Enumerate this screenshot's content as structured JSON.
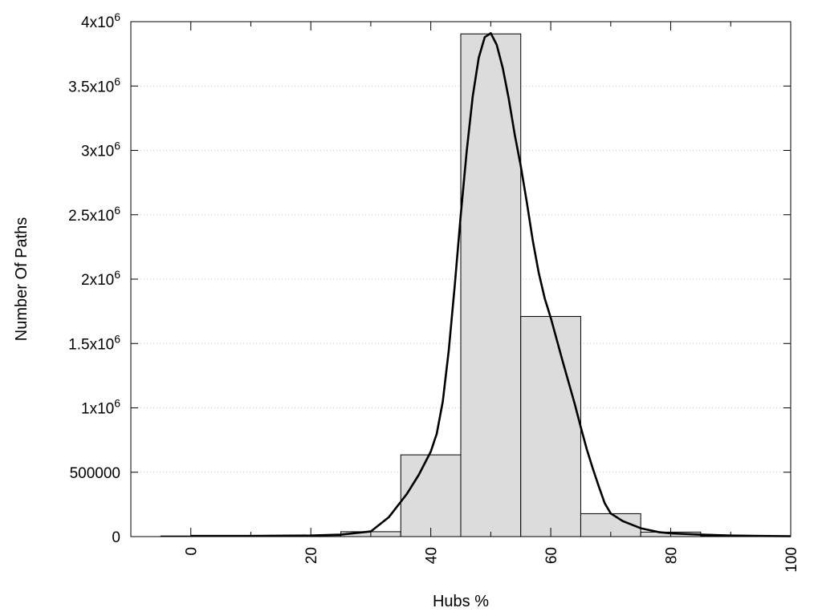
{
  "chart_data": {
    "type": "bar",
    "xlabel": "Hubs %",
    "ylabel": "Number Of Paths",
    "xlim": [
      -10,
      100
    ],
    "ylim": [
      0,
      4000000
    ],
    "grid": "horizontal-dotted",
    "x_ticks": [
      {
        "value": 0,
        "label": "0"
      },
      {
        "value": 20,
        "label": "20"
      },
      {
        "value": 40,
        "label": "40"
      },
      {
        "value": 60,
        "label": "60"
      },
      {
        "value": 80,
        "label": "80"
      },
      {
        "value": 100,
        "label": "100"
      }
    ],
    "y_ticks": [
      {
        "value": 0,
        "base": "0",
        "exp": ""
      },
      {
        "value": 500000,
        "base": "500000",
        "exp": ""
      },
      {
        "value": 1000000,
        "base": "1x10",
        "exp": "6"
      },
      {
        "value": 1500000,
        "base": "1.5x10",
        "exp": "6"
      },
      {
        "value": 2000000,
        "base": "2x10",
        "exp": "6"
      },
      {
        "value": 2500000,
        "base": "2.5x10",
        "exp": "6"
      },
      {
        "value": 3000000,
        "base": "3x10",
        "exp": "6"
      },
      {
        "value": 3500000,
        "base": "3.5x10",
        "exp": "6"
      },
      {
        "value": 4000000,
        "base": "4x10",
        "exp": "6"
      }
    ],
    "bin_width": 10,
    "bars": [
      {
        "x": 0,
        "value": 5000
      },
      {
        "x": 10,
        "value": 5000
      },
      {
        "x": 20,
        "value": 8000
      },
      {
        "x": 30,
        "value": 38000
      },
      {
        "x": 40,
        "value": 635000
      },
      {
        "x": 50,
        "value": 3905000
      },
      {
        "x": 60,
        "value": 1710000
      },
      {
        "x": 70,
        "value": 178000
      },
      {
        "x": 80,
        "value": 35000
      },
      {
        "x": 90,
        "value": 5000
      }
    ],
    "curve": {
      "x": [
        0,
        10,
        20,
        25,
        30,
        33,
        36,
        38,
        40,
        41,
        42,
        43,
        44,
        45,
        46,
        47,
        48,
        49,
        50,
        51,
        52,
        53,
        54,
        55,
        56,
        57,
        58,
        59,
        60,
        62,
        64,
        65,
        66,
        67,
        68,
        69,
        70,
        72,
        75,
        78,
        80,
        85,
        90,
        95,
        100
      ],
      "y": [
        5000,
        5000,
        8000,
        15000,
        40000,
        150000,
        330000,
        480000,
        660000,
        800000,
        1050000,
        1450000,
        1950000,
        2500000,
        3000000,
        3420000,
        3720000,
        3880000,
        3910000,
        3820000,
        3640000,
        3400000,
        3120000,
        2880000,
        2600000,
        2300000,
        2050000,
        1850000,
        1700000,
        1360000,
        1030000,
        850000,
        680000,
        530000,
        390000,
        260000,
        180000,
        120000,
        65000,
        35000,
        25000,
        15000,
        8000,
        5000,
        3000
      ]
    }
  }
}
